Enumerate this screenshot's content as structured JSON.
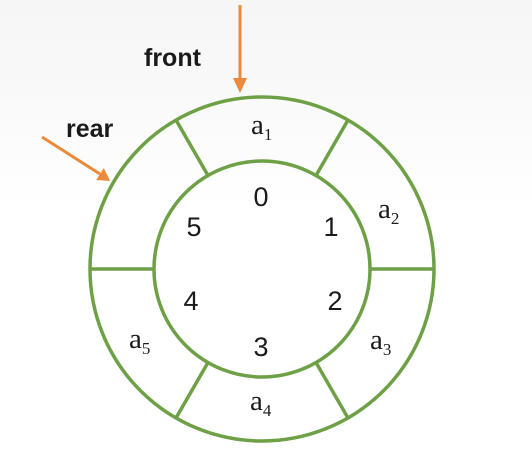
{
  "pointers": {
    "front": {
      "label": "front"
    },
    "rear": {
      "label": "rear"
    }
  },
  "indices": [
    "0",
    "1",
    "2",
    "3",
    "4",
    "5"
  ],
  "cells": [
    {
      "letter": "a",
      "sub": "1"
    },
    {
      "letter": "a",
      "sub": "2"
    },
    {
      "letter": "a",
      "sub": "3"
    },
    {
      "letter": "a",
      "sub": "4"
    },
    {
      "letter": "a",
      "sub": "5"
    },
    {
      "letter": "",
      "sub": ""
    }
  ],
  "colors": {
    "ring": "#6ea046",
    "pointer": "#ea8a3a",
    "text": "#1a1a1a"
  }
}
